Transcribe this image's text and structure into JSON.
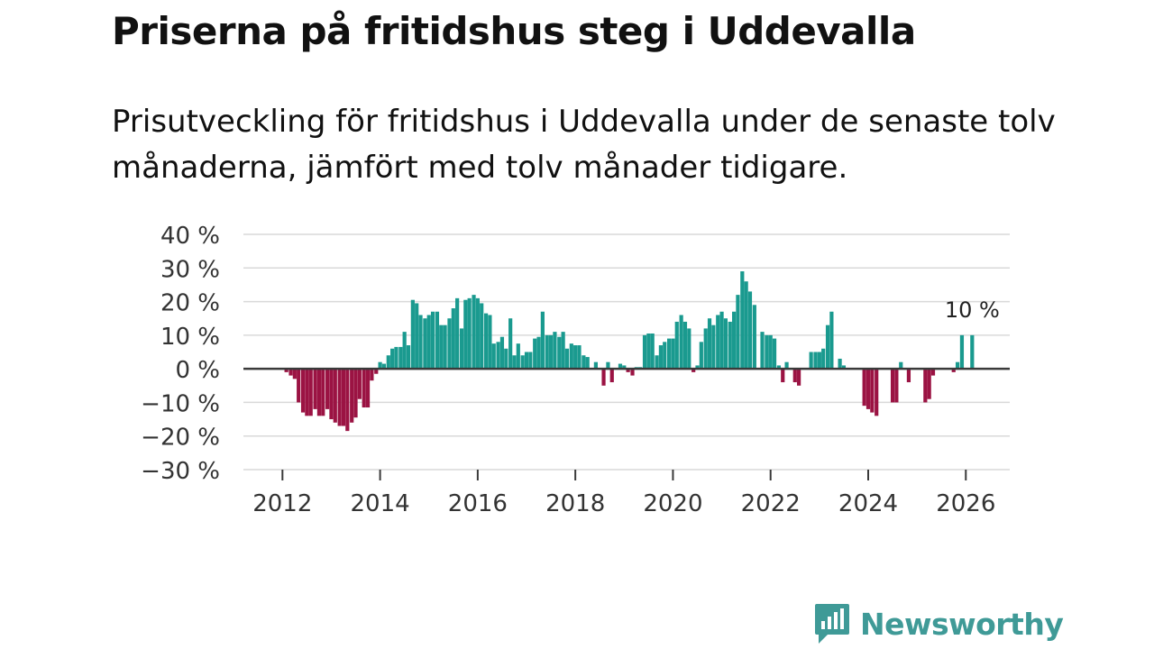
{
  "title": "Priserna på fritidshus steg i Uddevalla",
  "subtitle": "Prisutveckling för fritidshus i Uddevalla under de senaste tolv månaderna, jämfört med tolv månader tidigare.",
  "brand": {
    "name": "Newsworthy",
    "icon": "newsworthy-logo-icon"
  },
  "colors": {
    "positive": "#1a9a8f",
    "negative": "#9b1343",
    "grid": "#d9d9d9",
    "zero": "#3a3a3a",
    "brand": "#3f9a97"
  },
  "chart_data": {
    "type": "bar",
    "title": "Priserna på fritidshus steg i Uddevalla",
    "xlabel": "",
    "ylabel": "",
    "ylim": [
      -30,
      40
    ],
    "y_ticks": [
      40,
      30,
      20,
      10,
      0,
      -10,
      -20,
      -30
    ],
    "y_tick_labels": [
      "40 %",
      "30 %",
      "20 %",
      "10 %",
      "0 %",
      "−10 %",
      "−20 %",
      "−30 %"
    ],
    "x_ticks": [
      2012,
      2014,
      2016,
      2018,
      2020,
      2022,
      2024,
      2026
    ],
    "x_tick_labels": [
      "2012",
      "2014",
      "2016",
      "2018",
      "2020",
      "2022",
      "2024",
      "2026"
    ],
    "xlim": [
      2011.2,
      2026.9
    ],
    "grid": true,
    "annotation": {
      "label": "10 %",
      "x": 2026.13,
      "y": 10
    },
    "series": [
      {
        "name": "Prisutveckling",
        "points": [
          [
            2012.0,
            0.3
          ],
          [
            2012.08,
            -1
          ],
          [
            2012.17,
            -2
          ],
          [
            2012.25,
            -3
          ],
          [
            2012.33,
            -10
          ],
          [
            2012.42,
            -13
          ],
          [
            2012.5,
            -14
          ],
          [
            2012.58,
            -14
          ],
          [
            2012.67,
            -12
          ],
          [
            2012.75,
            -14
          ],
          [
            2012.83,
            -14
          ],
          [
            2012.92,
            -12
          ],
          [
            2013.0,
            -15
          ],
          [
            2013.08,
            -16
          ],
          [
            2013.17,
            -17
          ],
          [
            2013.25,
            -17
          ],
          [
            2013.33,
            -18.5
          ],
          [
            2013.42,
            -16
          ],
          [
            2013.5,
            -14.5
          ],
          [
            2013.58,
            -9
          ],
          [
            2013.67,
            -11.5
          ],
          [
            2013.75,
            -11.5
          ],
          [
            2013.83,
            -3.5
          ],
          [
            2013.92,
            -1.5
          ],
          [
            2014.0,
            2
          ],
          [
            2014.08,
            1.5
          ],
          [
            2014.17,
            4
          ],
          [
            2014.25,
            6
          ],
          [
            2014.33,
            6.5
          ],
          [
            2014.42,
            6.5
          ],
          [
            2014.5,
            11
          ],
          [
            2014.58,
            7
          ],
          [
            2014.67,
            20.5
          ],
          [
            2014.75,
            19.5
          ],
          [
            2014.83,
            16
          ],
          [
            2014.92,
            15
          ],
          [
            2015.0,
            16
          ],
          [
            2015.08,
            17
          ],
          [
            2015.17,
            17
          ],
          [
            2015.25,
            13
          ],
          [
            2015.33,
            13
          ],
          [
            2015.42,
            15
          ],
          [
            2015.5,
            18
          ],
          [
            2015.58,
            21
          ],
          [
            2015.67,
            12
          ],
          [
            2015.75,
            20.5
          ],
          [
            2015.83,
            21
          ],
          [
            2015.92,
            22
          ],
          [
            2016.0,
            21
          ],
          [
            2016.08,
            19.5
          ],
          [
            2016.17,
            16.5
          ],
          [
            2016.25,
            16
          ],
          [
            2016.33,
            7.5
          ],
          [
            2016.42,
            8
          ],
          [
            2016.5,
            9.5
          ],
          [
            2016.58,
            6
          ],
          [
            2016.67,
            15
          ],
          [
            2016.75,
            4
          ],
          [
            2016.83,
            7.5
          ],
          [
            2016.92,
            4
          ],
          [
            2017.0,
            5
          ],
          [
            2017.08,
            5
          ],
          [
            2017.17,
            9
          ],
          [
            2017.25,
            9.5
          ],
          [
            2017.33,
            17
          ],
          [
            2017.42,
            10
          ],
          [
            2017.5,
            10
          ],
          [
            2017.58,
            11
          ],
          [
            2017.67,
            9.5
          ],
          [
            2017.75,
            11
          ],
          [
            2017.83,
            6
          ],
          [
            2017.92,
            7.5
          ],
          [
            2018.0,
            7
          ],
          [
            2018.08,
            7
          ],
          [
            2018.17,
            4
          ],
          [
            2018.25,
            3.5
          ],
          [
            2018.42,
            2
          ],
          [
            2018.58,
            -5
          ],
          [
            2018.67,
            2
          ],
          [
            2018.75,
            -4
          ],
          [
            2018.92,
            1.5
          ],
          [
            2019.0,
            1
          ],
          [
            2019.08,
            -1
          ],
          [
            2019.17,
            -2
          ],
          [
            2019.25,
            0.5
          ],
          [
            2019.33,
            0.5
          ],
          [
            2019.42,
            10
          ],
          [
            2019.5,
            10.5
          ],
          [
            2019.58,
            10.5
          ],
          [
            2019.67,
            4
          ],
          [
            2019.75,
            7
          ],
          [
            2019.83,
            8
          ],
          [
            2019.92,
            9
          ],
          [
            2020.0,
            9
          ],
          [
            2020.08,
            14
          ],
          [
            2020.17,
            16
          ],
          [
            2020.25,
            14
          ],
          [
            2020.33,
            12
          ],
          [
            2020.42,
            -1
          ],
          [
            2020.5,
            1
          ],
          [
            2020.58,
            8
          ],
          [
            2020.67,
            12
          ],
          [
            2020.75,
            15
          ],
          [
            2020.83,
            13
          ],
          [
            2020.92,
            16
          ],
          [
            2021.0,
            17
          ],
          [
            2021.08,
            15
          ],
          [
            2021.17,
            14
          ],
          [
            2021.25,
            17
          ],
          [
            2021.33,
            22
          ],
          [
            2021.42,
            29
          ],
          [
            2021.5,
            26
          ],
          [
            2021.58,
            23
          ],
          [
            2021.67,
            19
          ],
          [
            2021.75,
            0.3
          ],
          [
            2021.83,
            11
          ],
          [
            2021.92,
            10
          ],
          [
            2022.0,
            10
          ],
          [
            2022.08,
            9
          ],
          [
            2022.17,
            1
          ],
          [
            2022.25,
            -4
          ],
          [
            2022.33,
            2
          ],
          [
            2022.5,
            -4
          ],
          [
            2022.58,
            -5
          ],
          [
            2022.83,
            5
          ],
          [
            2022.92,
            5
          ],
          [
            2023.0,
            5
          ],
          [
            2023.08,
            6
          ],
          [
            2023.17,
            13
          ],
          [
            2023.25,
            17
          ],
          [
            2023.42,
            3
          ],
          [
            2023.5,
            1
          ],
          [
            2023.92,
            -11
          ],
          [
            2024.0,
            -12
          ],
          [
            2024.08,
            -13
          ],
          [
            2024.17,
            -14
          ],
          [
            2024.5,
            -10
          ],
          [
            2024.58,
            -10
          ],
          [
            2024.67,
            2
          ],
          [
            2024.83,
            -4
          ],
          [
            2025.17,
            -10
          ],
          [
            2025.25,
            -9
          ],
          [
            2025.33,
            -2
          ],
          [
            2025.75,
            -1
          ],
          [
            2025.83,
            2
          ],
          [
            2025.92,
            10
          ],
          [
            2026.13,
            10
          ]
        ]
      }
    ]
  }
}
